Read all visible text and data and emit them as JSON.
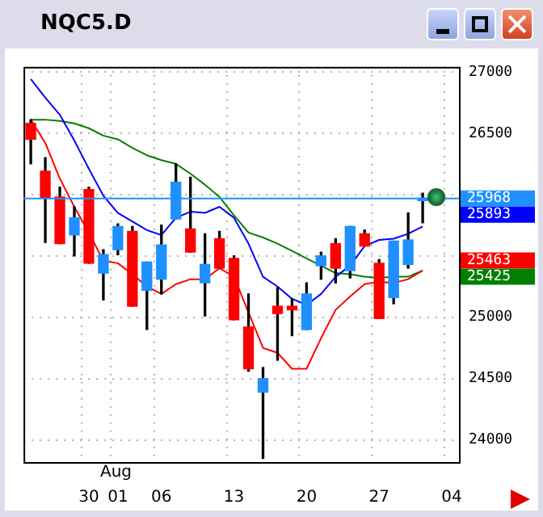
{
  "chart_data": {
    "type": "candlestick",
    "title": "NQC5.D",
    "categories": [
      null,
      null,
      null,
      null,
      "30",
      null,
      "01",
      null,
      null,
      "06",
      null,
      null,
      null,
      null,
      "13",
      null,
      null,
      null,
      null,
      "20",
      null,
      null,
      null,
      null,
      "27",
      null,
      null,
      null,
      null,
      "04"
    ],
    "ohlc": [
      [
        26580,
        26610,
        26250,
        26450
      ],
      [
        26190,
        26300,
        25610,
        25970
      ],
      [
        25980,
        26060,
        25600,
        25600
      ],
      [
        25670,
        25900,
        25500,
        25810
      ],
      [
        26040,
        26060,
        25440,
        25440
      ],
      [
        25360,
        25550,
        25140,
        25510
      ],
      [
        25550,
        25760,
        25510,
        25740
      ],
      [
        25700,
        25740,
        25090,
        25090
      ],
      [
        25220,
        25450,
        24900,
        25450
      ],
      [
        25310,
        25750,
        25190,
        25590
      ],
      [
        25800,
        26250,
        25800,
        26100
      ],
      [
        25720,
        26140,
        25530,
        25530
      ],
      [
        25280,
        25680,
        25010,
        25430
      ],
      [
        25640,
        25700,
        25400,
        25400
      ],
      [
        25480,
        25500,
        24980,
        24980
      ],
      [
        24920,
        25190,
        24560,
        24580
      ],
      [
        24390,
        24590,
        23850,
        24500
      ],
      [
        25090,
        25240,
        24650,
        25030
      ],
      [
        25090,
        25150,
        24850,
        25060
      ],
      [
        24900,
        25280,
        24900,
        25190
      ],
      [
        25420,
        25530,
        25310,
        25500
      ],
      [
        25600,
        25640,
        25280,
        25400
      ],
      [
        25380,
        25740,
        25320,
        25740
      ],
      [
        25680,
        25710,
        25580,
        25580
      ],
      [
        25440,
        25470,
        24990,
        24990
      ],
      [
        25160,
        25620,
        25110,
        25620
      ],
      [
        25430,
        25850,
        25400,
        25630
      ],
      [
        25950,
        26010,
        25770,
        25970
      ],
      null,
      null
    ],
    "colors": [
      "#ff0000",
      "#ff0000",
      "#ff0000",
      "#1e90ff",
      "#ff0000",
      "#1e90ff",
      "#1e90ff",
      "#ff0000",
      "#1e90ff",
      "#1e90ff",
      "#1e90ff",
      "#ff0000",
      "#1e90ff",
      "#ff0000",
      "#ff0000",
      "#ff0000",
      "#1e90ff",
      "#ff0000",
      "#ff0000",
      "#1e90ff",
      "#1e90ff",
      "#ff0000",
      "#1e90ff",
      "#ff0000",
      "#ff0000",
      "#1e90ff",
      "#1e90ff",
      "#1e90ff",
      null,
      null
    ],
    "series": [
      {
        "type": "line",
        "color": "#0000ff",
        "values": [
          26940,
          26790,
          26650,
          26440,
          26210,
          25990,
          25850,
          25780,
          25710,
          25670,
          25810,
          25860,
          25850,
          25900,
          25810,
          25600,
          25330,
          25250,
          25150,
          25100,
          25190,
          25330,
          25420,
          25580,
          25630,
          25640,
          25680,
          25740,
          null,
          null
        ]
      },
      {
        "type": "line",
        "color": "#ff0000",
        "values": [
          26610,
          26420,
          26130,
          25900,
          25690,
          25460,
          25440,
          25350,
          25250,
          25190,
          25270,
          25310,
          25310,
          25400,
          25330,
          25040,
          24750,
          24710,
          24580,
          24580,
          24830,
          25060,
          25170,
          25270,
          25290,
          25280,
          25310,
          25380,
          null,
          null
        ]
      },
      {
        "type": "line",
        "color": "#008000",
        "values": [
          26610,
          26610,
          26600,
          26580,
          26540,
          26480,
          26450,
          26380,
          26320,
          26280,
          26250,
          26170,
          26080,
          25980,
          25830,
          25690,
          25650,
          25600,
          25540,
          25480,
          25420,
          25360,
          25350,
          25330,
          25320,
          25330,
          25330,
          25380,
          null,
          null
        ]
      }
    ],
    "ylim": [
      23820,
      27040
    ],
    "yticks": [
      27000,
      26500,
      {
        "value": 26000,
        "label": null
      },
      {
        "value": 25500,
        "label": null
      },
      25000,
      24500,
      24000
    ],
    "grid": true,
    "marker": "none",
    "ref_lines": [
      {
        "axis": "y",
        "value": 25968,
        "label": "25968",
        "color": "#1e90ff"
      }
    ],
    "annotations": [
      "Aug",
      "25893",
      "25463",
      "25425"
    ]
  }
}
